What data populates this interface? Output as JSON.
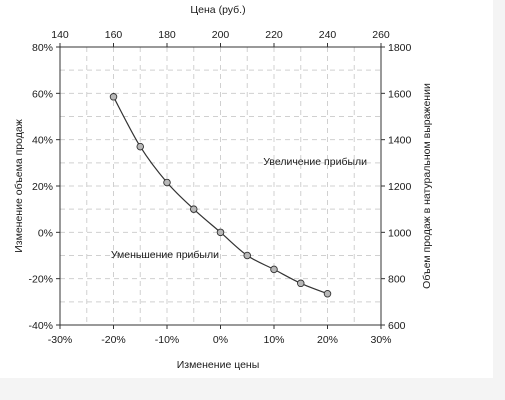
{
  "chart_data": {
    "type": "scatter",
    "title": "",
    "x_bottom": {
      "label": "Изменение цены",
      "range": [
        -30,
        30
      ],
      "ticks": [
        -30,
        -20,
        -10,
        0,
        10,
        20,
        30
      ],
      "tick_labels": [
        "-30%",
        "-20%",
        "-10%",
        "0%",
        "10%",
        "20%",
        "30%"
      ]
    },
    "x_top": {
      "label": "Цена (руб.)",
      "range": [
        140,
        260
      ],
      "ticks": [
        140,
        160,
        180,
        200,
        220,
        240,
        260
      ],
      "tick_labels": [
        "140",
        "160",
        "180",
        "200",
        "220",
        "240",
        "260"
      ]
    },
    "y_left": {
      "label": "Изменение объема продаж",
      "range": [
        -40,
        80
      ],
      "ticks": [
        -40,
        -20,
        0,
        20,
        40,
        60,
        80
      ],
      "tick_labels": [
        "-40%",
        "-20%",
        "0%",
        "20%",
        "40%",
        "60%",
        "80%"
      ]
    },
    "y_right": {
      "label": "Объем продаж в натуральном выражении",
      "range": [
        600,
        1800
      ],
      "ticks": [
        600,
        800,
        1000,
        1200,
        1400,
        1600,
        1800
      ],
      "tick_labels": [
        "600",
        "800",
        "1000",
        "1200",
        "1400",
        "1600",
        "1800"
      ]
    },
    "grid": true,
    "series": [
      {
        "x": [
          -20,
          -15,
          -10,
          -5,
          0,
          5,
          10,
          15,
          20
        ],
        "y": [
          58.5,
          37,
          21.5,
          10,
          0,
          -10,
          -16,
          -22,
          -26.5
        ]
      }
    ],
    "annotations": [
      {
        "text": "Увеличение прибыли",
        "x": 8,
        "y": 29
      },
      {
        "text": "Уменьшение прибыли",
        "x": -20.5,
        "y": -11
      }
    ],
    "colors": {
      "line": "#333333",
      "marker_fill": "#b8b8b8",
      "marker_stroke": "#333333",
      "grid": "#d0d0d0"
    }
  }
}
